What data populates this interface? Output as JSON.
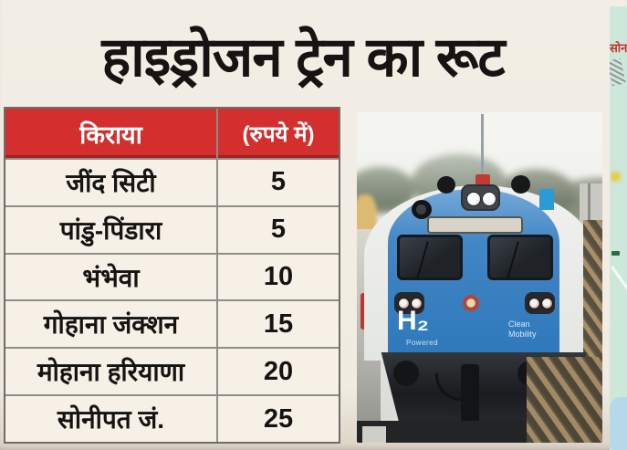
{
  "headline": {
    "text": "हाइड्रोजन ट्रेन का रूट",
    "color": "#191112"
  },
  "fare_table": {
    "header": {
      "col1": "किराया",
      "col2": "(रुपये में)",
      "bg": "#d32f2f",
      "text_color": "#ffffff"
    },
    "rows": [
      {
        "station": "जींद सिटी",
        "fare": "5"
      },
      {
        "station": "पांडु-पिंडारा",
        "fare": "5"
      },
      {
        "station": "भंभेवा",
        "fare": "10"
      },
      {
        "station": "गोहाना जंक्शन",
        "fare": "15"
      },
      {
        "station": "मोहाना हरियाणा",
        "fare": "20"
      },
      {
        "station": "सोनीपत जं.",
        "fare": "25"
      }
    ]
  },
  "train_photo": {
    "labels": {
      "h2": "H₂",
      "powered": "Powered",
      "clean_mobility": "Clean\nMobility"
    },
    "colors": {
      "train_blue": "#2e78bb",
      "body_white": "#eef0ed",
      "bumper_dark": "#1a1c1f"
    }
  },
  "map_sliver": {
    "label": "सोन",
    "label_color": "#c0332b",
    "bg": "#cde8da"
  },
  "chart_data": {
    "type": "table",
    "title": "हाइड्रोजन ट्रेन का रूट",
    "columns": [
      "किराया",
      "(रुपये में)"
    ],
    "rows": [
      [
        "जींद सिटी",
        5
      ],
      [
        "पांडु-पिंडारा",
        5
      ],
      [
        "भंभेवा",
        10
      ],
      [
        "गोहाना जंक्शन",
        15
      ],
      [
        "मोहाना हरियाणा",
        20
      ],
      [
        "सोनीपत जं.",
        25
      ]
    ]
  }
}
